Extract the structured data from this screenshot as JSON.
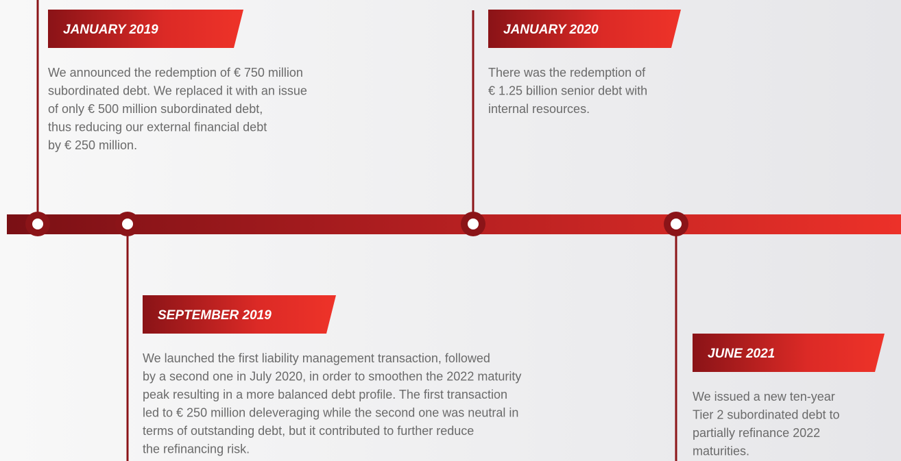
{
  "events": [
    {
      "date": "JANUARY 2019",
      "lines": [
        "We announced the redemption of € 750 million",
        "subordinated debt. We replaced it with an issue",
        "of only € 500 million subordinated debt,",
        "thus reducing our external financial debt",
        "by € 250 million."
      ]
    },
    {
      "date": "SEPTEMBER 2019",
      "lines": [
        "We launched the first liability management transaction, followed",
        "by a second one in July 2020, in order to smoothen the 2022 maturity",
        "peak resulting in a more balanced debt profile. The first transaction",
        "led to € 250 million deleveraging while the second one was neutral in",
        "terms of outstanding debt, but it contributed to further reduce",
        "the refinancing risk."
      ]
    },
    {
      "date": "JANUARY 2020",
      "lines": [
        "There was the redemption of",
        "€ 1.25 billion senior debt with",
        "internal resources."
      ]
    },
    {
      "date": "JUNE 2021",
      "lines": [
        "We issued a new ten-year",
        "Tier 2 subordinated debt to",
        "partially refinance 2022",
        "maturities."
      ]
    }
  ]
}
